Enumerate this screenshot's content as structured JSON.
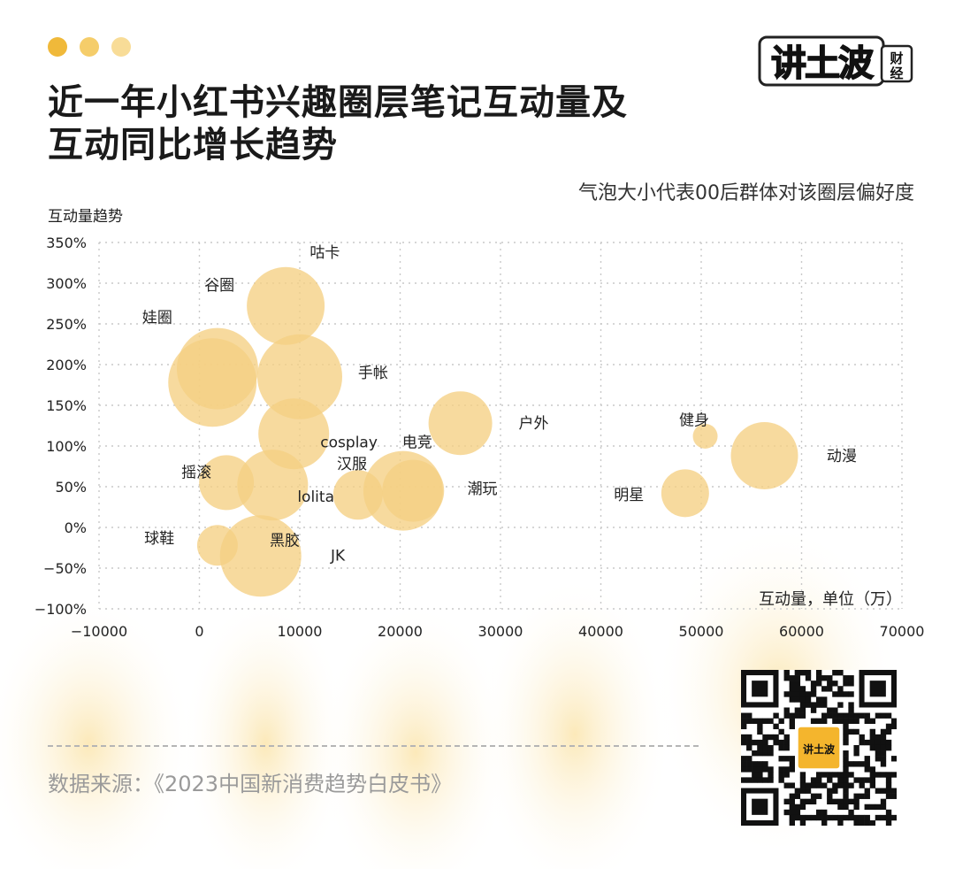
{
  "header": {
    "title_line1": "近一年小红书兴趣圈层笔记互动量及",
    "title_line2": "互动同比增长趋势",
    "subtitle": "气泡大小代表00后群体对该圈层偏好度",
    "brand": "讲土波",
    "brand_sub1": "财",
    "brand_sub2": "经",
    "dot_colors": [
      "#f0b93a",
      "#f5cd6a",
      "#f8dc97"
    ]
  },
  "footer": {
    "source": "数据来源：《2023中国新消费趋势白皮书》",
    "qr_logo_text": "讲土波"
  },
  "colors": {
    "bubble": "#f5d083",
    "bubble_opacity": 0.78,
    "grid": "#c9c9c9",
    "glow": "#fcecc0"
  },
  "chart_data": {
    "type": "scatter",
    "ylabel": "互动量趋势",
    "xlabel": "互动量，单位（万）",
    "xlim": [
      -10000,
      70000
    ],
    "ylim": [
      -100,
      350
    ],
    "x_ticks": [
      "−10000",
      "0",
      "10000",
      "20000",
      "30000",
      "40000",
      "50000",
      "60000",
      "70000"
    ],
    "y_ticks": [
      "−100%",
      "−50%",
      "0%",
      "50%",
      "100%",
      "150%",
      "200%",
      "250%",
      "300%",
      "350%"
    ],
    "grid": true,
    "points": [
      {
        "name": "咕卡",
        "x": 8600,
        "y": 272,
        "size": 44,
        "label_x": 12500,
        "label_y": 338
      },
      {
        "name": "谷圈",
        "x": 1800,
        "y": 195,
        "size": 46,
        "label_x": 2000,
        "label_y": 298
      },
      {
        "name": "娃圈",
        "x": 1300,
        "y": 178,
        "size": 50,
        "label_x": -4200,
        "label_y": 258
      },
      {
        "name": "手帐",
        "x": 10000,
        "y": 185,
        "size": 48,
        "label_x": 17300,
        "label_y": 190
      },
      {
        "name": "cosplay",
        "x": 9400,
        "y": 115,
        "size": 40,
        "label_x": 14900,
        "label_y": 105
      },
      {
        "name": "电竞",
        "x": 26000,
        "y": 128,
        "size": 36,
        "label_x": 21700,
        "label_y": 105
      },
      {
        "name": "户外",
        "x": 33300,
        "y": 128,
        "size": 0,
        "label_x": 33300,
        "label_y": 128
      },
      {
        "name": "健身",
        "x": 50400,
        "y": 112,
        "size": 14,
        "label_x": 49300,
        "label_y": 132
      },
      {
        "name": "动漫",
        "x": 56300,
        "y": 88,
        "size": 38,
        "label_x": 64000,
        "label_y": 88
      },
      {
        "name": "摇滚",
        "x": 2700,
        "y": 55,
        "size": 31,
        "label_x": -300,
        "label_y": 68
      },
      {
        "name": "汉服",
        "x": 20300,
        "y": 45,
        "size": 45,
        "label_x": 15200,
        "label_y": 78
      },
      {
        "name": "lolita",
        "x": 7300,
        "y": 52,
        "size": 40,
        "label_x": 11600,
        "label_y": 38
      },
      {
        "name": "潮玩",
        "x": 21300,
        "y": 45,
        "size": 35,
        "label_x": 28200,
        "label_y": 48
      },
      {
        "name": "明星",
        "x": 48400,
        "y": 42,
        "size": 27,
        "label_x": 42800,
        "label_y": 40
      },
      {
        "name": "球鞋",
        "x": 1800,
        "y": -22,
        "size": 23,
        "label_x": -4000,
        "label_y": -13
      },
      {
        "name": "黑胶",
        "x": 6100,
        "y": -35,
        "size": 46,
        "label_x": 8500,
        "label_y": -16
      },
      {
        "name": "JK",
        "x": 15800,
        "y": 40,
        "size": 28,
        "label_x": 13800,
        "label_y": -34
      }
    ]
  }
}
